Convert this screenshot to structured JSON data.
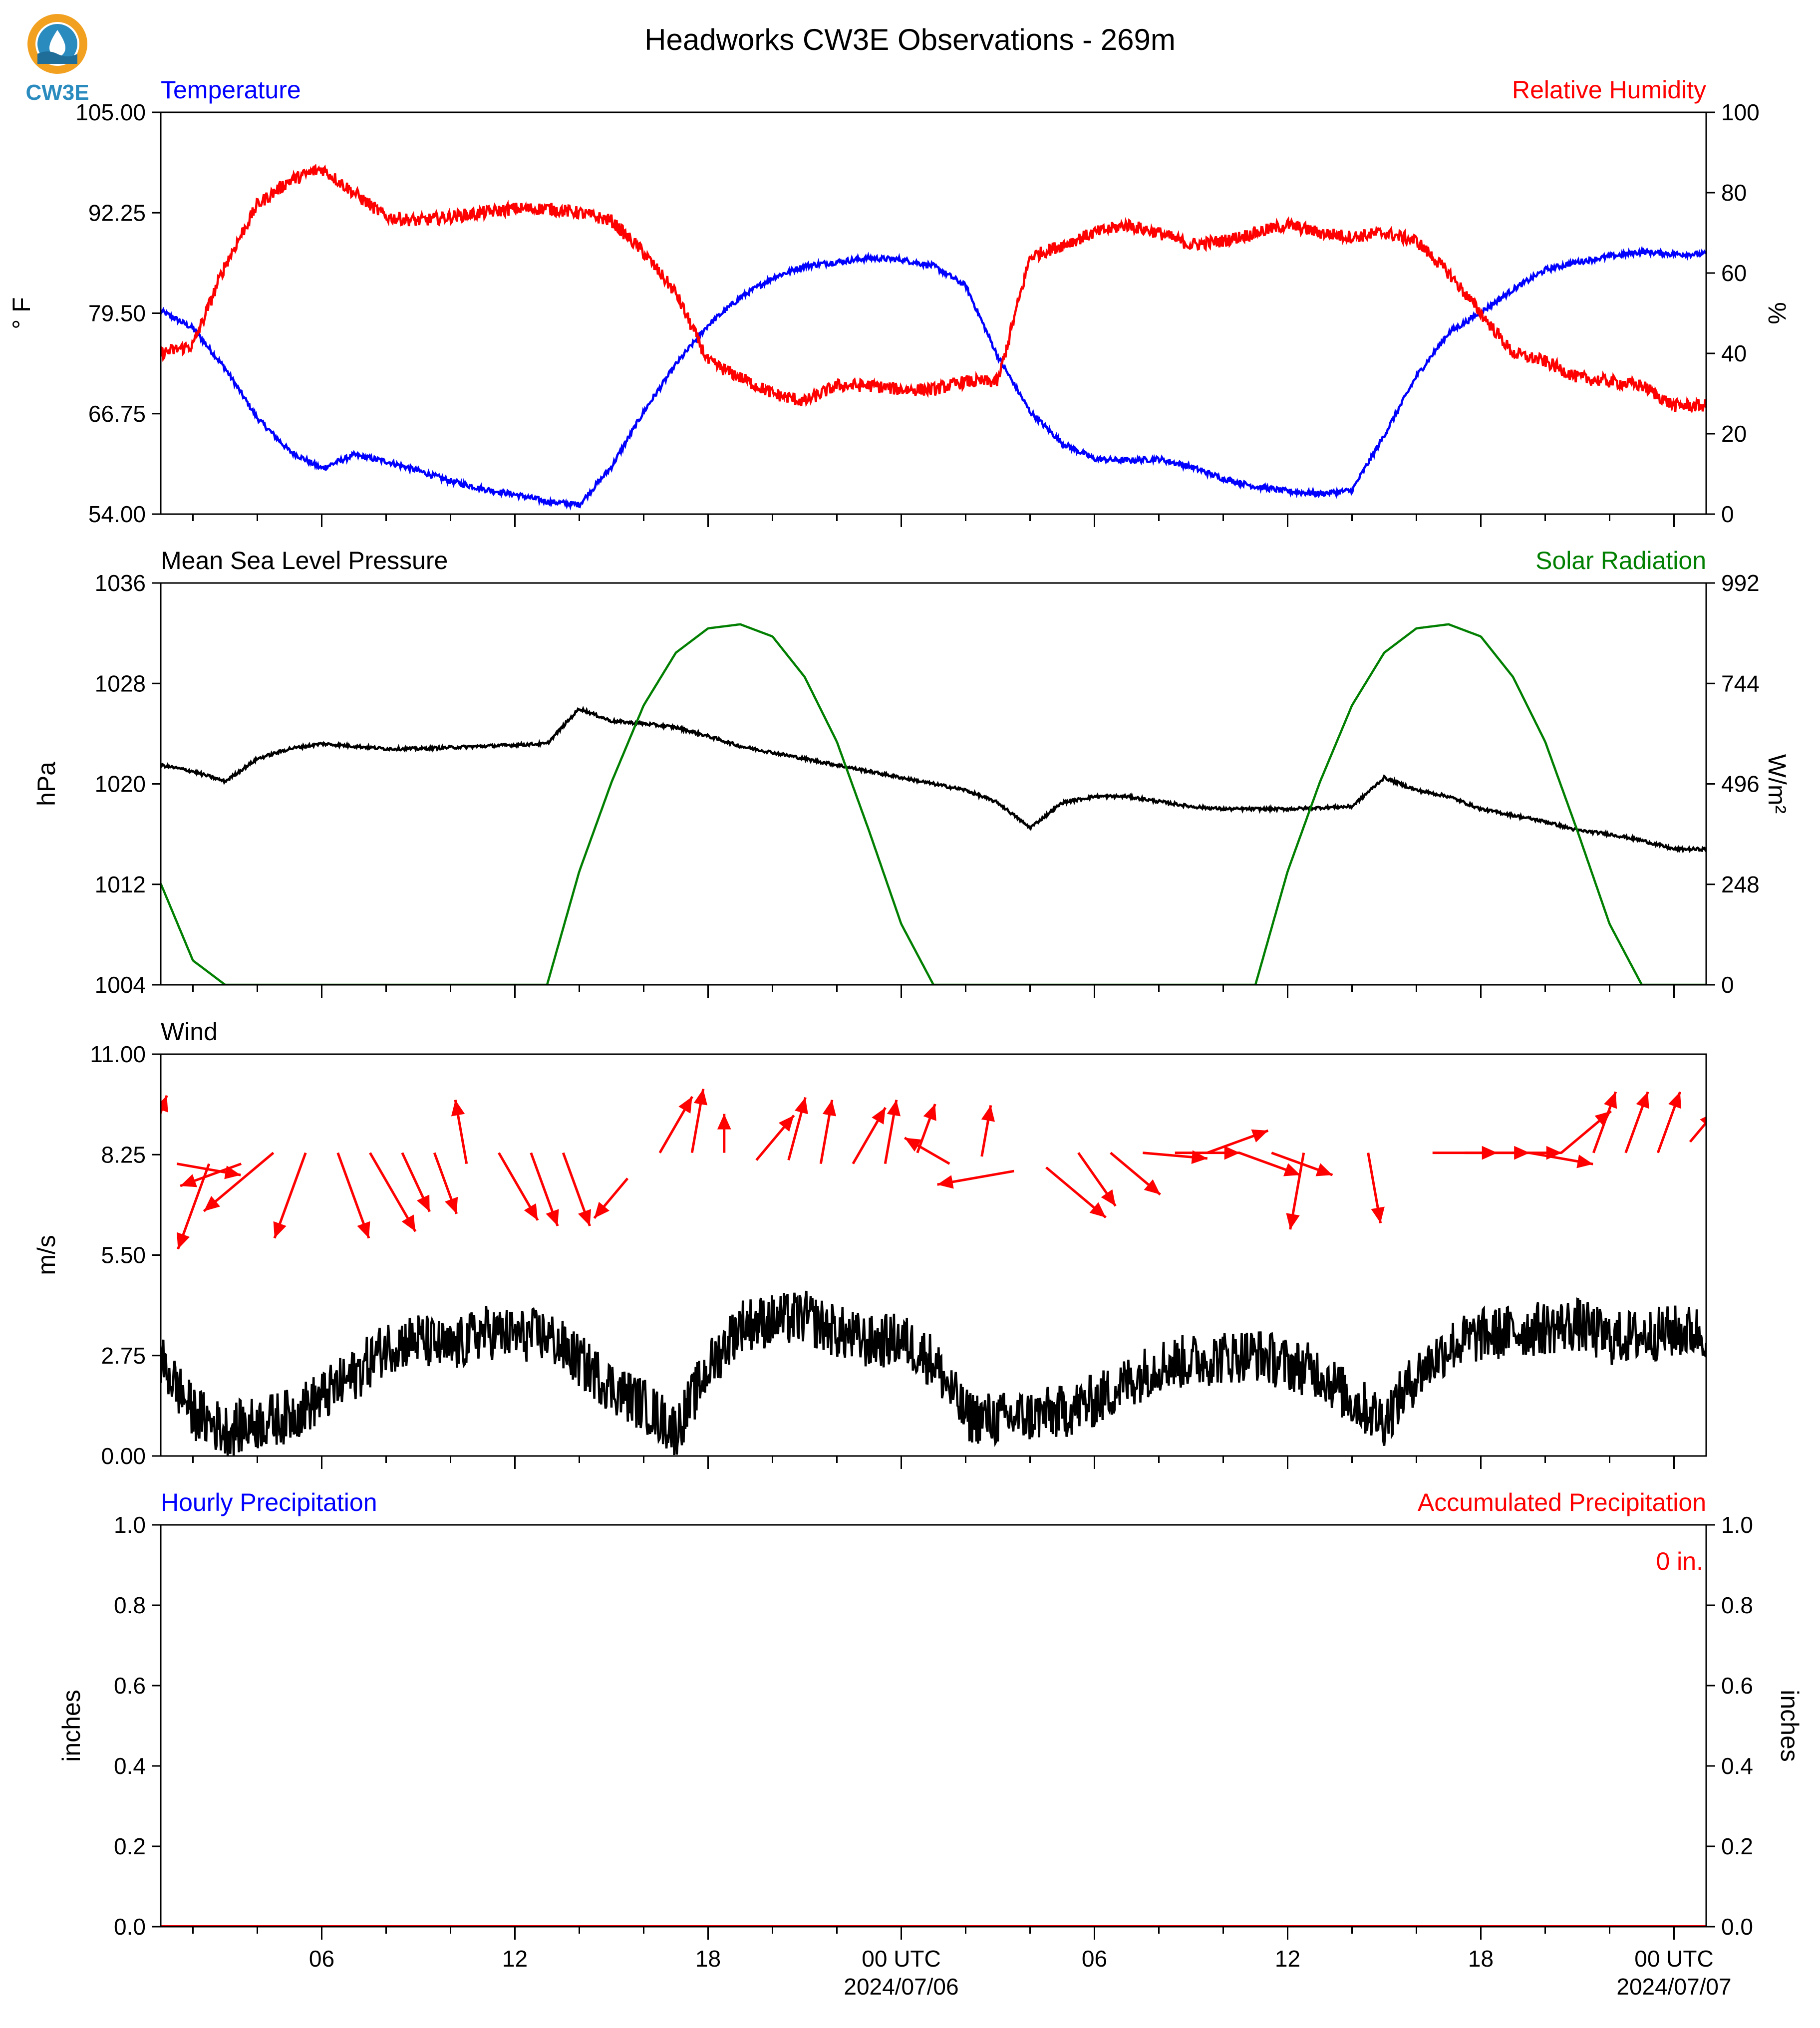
{
  "title": "Headworks CW3E Observations - 269m",
  "logo": {
    "text": "CW3E",
    "colors": {
      "ring": "#f2a020",
      "drop": "#2a8bbf",
      "wave": "#1f6d99"
    }
  },
  "colors": {
    "temperature": "#0000ff",
    "humidity": "#ff0000",
    "pressure": "#000000",
    "solar": "#007f00",
    "wind": "#000000",
    "wind_arrow": "#ff0000",
    "hourly": "#0000ff",
    "accum": "#ff0000"
  },
  "chart_data": [
    {
      "type": "line",
      "left_label": "Temperature",
      "right_label": "Relative Humidity",
      "ylabel": "° F",
      "ylabel_right": "%",
      "ylim": [
        54,
        105
      ],
      "ylim_right": [
        0,
        100
      ],
      "yticks": [
        "105.00",
        "92.25",
        "79.50",
        "66.75",
        "54.00"
      ],
      "yticks_right": [
        "100",
        "80",
        "60",
        "40",
        "20",
        "0"
      ],
      "x_hours": [
        0,
        1,
        2,
        3,
        4,
        5,
        6,
        7,
        8,
        9,
        10,
        11,
        12,
        13,
        14,
        15,
        16,
        17,
        18,
        19,
        20,
        21,
        22,
        23,
        24,
        25,
        26,
        27,
        28,
        29,
        30,
        31,
        32,
        33,
        34,
        35,
        36,
        37,
        38,
        39,
        40,
        41,
        42,
        43,
        44,
        45,
        46,
        47,
        48
      ],
      "series": [
        {
          "name": "Temperature",
          "axis": "left",
          "values": [
            80.5,
            79.8,
            77.6,
            72.5,
            66.2,
            62.0,
            59.8,
            61.5,
            60.7,
            59.5,
            58.2,
            57.2,
            56.5,
            55.6,
            55.2,
            60.0,
            67.0,
            73.0,
            78.0,
            81.5,
            84.0,
            85.5,
            86.0,
            86.5,
            86.3,
            85.5,
            83.0,
            74.0,
            67.0,
            63.0,
            61.0,
            60.8,
            61.0,
            60.0,
            58.5,
            57.5,
            56.9,
            56.6,
            57.0,
            64.0,
            71.5,
            77.0,
            79.6,
            82.5,
            85.0,
            86.0,
            86.7,
            87.3,
            87.0
          ]
        },
        {
          "name": "Relative Humidity",
          "axis": "right",
          "values": [
            38,
            40,
            42,
            62,
            77,
            83,
            86,
            80,
            74,
            73,
            74,
            75,
            76,
            76,
            75,
            73,
            65,
            55,
            38,
            34,
            30,
            28,
            32,
            32,
            31,
            31,
            33,
            33,
            64,
            67,
            70,
            72,
            70,
            67,
            68,
            70,
            72,
            70,
            69,
            70,
            68,
            60,
            50,
            40,
            38,
            34,
            33,
            32,
            27
          ]
        }
      ]
    },
    {
      "type": "line",
      "left_label": "Mean Sea Level Pressure",
      "right_label": "Solar Radiation",
      "ylabel": "hPa",
      "ylabel_right": "W/m²",
      "ylim": [
        1004,
        1036
      ],
      "ylim_right": [
        0,
        992
      ],
      "yticks": [
        "1036",
        "1028",
        "1020",
        "1012",
        "1004"
      ],
      "yticks_right": [
        "992",
        "744",
        "496",
        "248",
        "0"
      ],
      "x_hours": [
        0,
        1,
        2,
        3,
        4,
        5,
        6,
        7,
        8,
        9,
        10,
        11,
        12,
        13,
        14,
        15,
        16,
        17,
        18,
        19,
        20,
        21,
        22,
        23,
        24,
        25,
        26,
        27,
        28,
        29,
        30,
        31,
        32,
        33,
        34,
        35,
        36,
        37,
        38,
        39,
        40,
        41,
        42,
        43,
        44,
        45,
        46,
        47,
        48
      ],
      "series": [
        {
          "name": "Mean Sea Level Pressure",
          "axis": "left",
          "values": [
            1022.0,
            1021.5,
            1021.0,
            1020.2,
            1022.0,
            1022.8,
            1023.2,
            1023.0,
            1022.8,
            1022.8,
            1022.9,
            1023.0,
            1023.1,
            1023.2,
            1026.0,
            1025.0,
            1024.8,
            1024.5,
            1023.8,
            1023.0,
            1022.5,
            1022.0,
            1021.5,
            1021.0,
            1020.5,
            1020.0,
            1019.5,
            1018.5,
            1016.5,
            1018.5,
            1019.0,
            1019.0,
            1018.6,
            1018.2,
            1018.0,
            1018.0,
            1018.0,
            1018.1,
            1018.2,
            1020.5,
            1019.5,
            1019.0,
            1018.0,
            1017.5,
            1017.0,
            1016.3,
            1016.0,
            1015.5,
            1014.8
          ]
        },
        {
          "name": "Solar Radiation",
          "axis": "right",
          "values": [
            450,
            250,
            60,
            0,
            0,
            0,
            0,
            0,
            0,
            0,
            0,
            0,
            0,
            0,
            280,
            500,
            690,
            820,
            880,
            890,
            860,
            760,
            600,
            380,
            150,
            0,
            0,
            0,
            0,
            0,
            0,
            0,
            0,
            0,
            0,
            0,
            280,
            500,
            690,
            820,
            880,
            890,
            860,
            760,
            600,
            380,
            150,
            0,
            0
          ]
        }
      ]
    },
    {
      "type": "line",
      "left_label": "Wind",
      "ylabel": "m/s",
      "ylim": [
        0,
        11
      ],
      "yticks": [
        "11.00",
        "8.25",
        "5.50",
        "2.75",
        "0.00"
      ],
      "x_hours": [
        0,
        1,
        2,
        3,
        4,
        5,
        6,
        7,
        8,
        9,
        10,
        11,
        12,
        13,
        14,
        15,
        16,
        17,
        18,
        19,
        20,
        21,
        22,
        23,
        24,
        25,
        26,
        27,
        28,
        29,
        30,
        31,
        32,
        33,
        34,
        35,
        36,
        37,
        38,
        39,
        40,
        41,
        42,
        43,
        44,
        45,
        46,
        47,
        48
      ],
      "series": [
        {
          "name": "Wind Speed",
          "values": [
            3.1,
            2.6,
            1.2,
            0.7,
            0.9,
            1.1,
            1.6,
            2.2,
            3.0,
            3.2,
            2.9,
            3.4,
            3.3,
            3.3,
            2.6,
            1.9,
            1.4,
            0.7,
            2.4,
            3.6,
            3.7,
            3.8,
            3.4,
            3.1,
            3.2,
            2.6,
            1.1,
            1.0,
            1.1,
            1.2,
            1.5,
            2.0,
            2.5,
            2.6,
            2.7,
            2.8,
            2.5,
            2.3,
            1.5,
            1.0,
            2.2,
            3.0,
            3.3,
            3.4,
            3.5,
            3.6,
            3.2,
            3.3,
            3.4
          ]
        }
      ],
      "wind_arrows": {
        "x_hours": [
          0,
          1,
          2,
          3,
          4,
          5,
          6,
          7,
          8,
          9,
          10,
          11,
          12,
          13,
          14,
          15,
          16,
          17,
          18,
          19,
          20,
          21,
          22,
          23,
          24,
          25,
          26,
          27,
          28,
          29,
          30,
          31,
          32,
          33,
          34,
          35,
          36,
          37,
          38,
          39,
          40,
          41,
          42,
          43,
          44,
          45,
          46,
          47,
          48
        ],
        "y": [
          8.2,
          8.0,
          8.0,
          8.0,
          8.3,
          8.3,
          8.3,
          8.3,
          8.3,
          8.3,
          8.0,
          8.3,
          8.3,
          8.3,
          8.3,
          7.6,
          8.3,
          8.3,
          8.3,
          8.1,
          8.1,
          8.0,
          8.0,
          8.0,
          8.3,
          8.0,
          8.2,
          7.8,
          7.9,
          8.3,
          8.3,
          8.3,
          8.3,
          8.3,
          8.3,
          8.3,
          8.3,
          8.3,
          8.3,
          8.3,
          8.3,
          8.3,
          8.3,
          8.3,
          8.3,
          8.3,
          8.3,
          8.3,
          8.6
        ],
        "dir_deg": [
          20,
          100,
          200,
          250,
          230,
          200,
          160,
          150,
          155,
          160,
          350,
          150,
          160,
          160,
          0,
          220,
          30,
          10,
          0,
          40,
          15,
          10,
          30,
          10,
          20,
          300,
          10,
          260,
          130,
          145,
          130,
          95,
          90,
          70,
          110,
          110,
          190,
          170,
          170,
          0,
          90,
          90,
          90,
          100,
          50,
          20,
          20,
          20,
          40
        ],
        "len": [
          1.0,
          1.0,
          1.4,
          1.0,
          1.4,
          1.4,
          1.4,
          1.4,
          1.0,
          1.0,
          1.0,
          1.2,
          1.2,
          1.2,
          0,
          0.8,
          1.0,
          1.0,
          0.6,
          0.9,
          1.0,
          1.0,
          1.0,
          1.0,
          0.8,
          0.8,
          0.8,
          1.2,
          1.2,
          1.0,
          1.0,
          1.0,
          1.0,
          1.0,
          1.0,
          1.0,
          1.2,
          0,
          1.1,
          0,
          1.0,
          1.0,
          1.0,
          1.0,
          1.0,
          1.0,
          1.0,
          1.0,
          0.6
        ]
      }
    },
    {
      "type": "line",
      "left_label": "Hourly Precipitation",
      "right_label": "Accumulated Precipitation",
      "annotation": "0 in.",
      "ylabel": "inches",
      "ylabel_right": "inches",
      "ylim": [
        0,
        1
      ],
      "ylim_right": [
        0,
        1
      ],
      "yticks": [
        "1.0",
        "0.8",
        "0.6",
        "0.4",
        "0.2",
        "0.0"
      ],
      "yticks_right": [
        "1.0",
        "0.8",
        "0.6",
        "0.4",
        "0.2",
        "0.0"
      ],
      "x_hours": [
        0,
        48
      ],
      "series": [
        {
          "name": "Hourly Precipitation",
          "axis": "left",
          "values": [
            0,
            0
          ]
        },
        {
          "name": "Accumulated Precipitation",
          "axis": "right",
          "values": [
            0,
            0
          ]
        }
      ]
    }
  ],
  "x_axis": {
    "start_hour": 1,
    "end_hour": 49,
    "major_ticks": [
      {
        "hour": 6,
        "label": "06"
      },
      {
        "hour": 12,
        "label": "12"
      },
      {
        "hour": 18,
        "label": "18"
      },
      {
        "hour": 24,
        "label": "00 UTC",
        "sublabel": "2024/07/06"
      },
      {
        "hour": 30,
        "label": "06"
      },
      {
        "hour": 36,
        "label": "12"
      },
      {
        "hour": 42,
        "label": "18"
      },
      {
        "hour": 48,
        "label": "00 UTC",
        "sublabel": "2024/07/07"
      }
    ]
  }
}
